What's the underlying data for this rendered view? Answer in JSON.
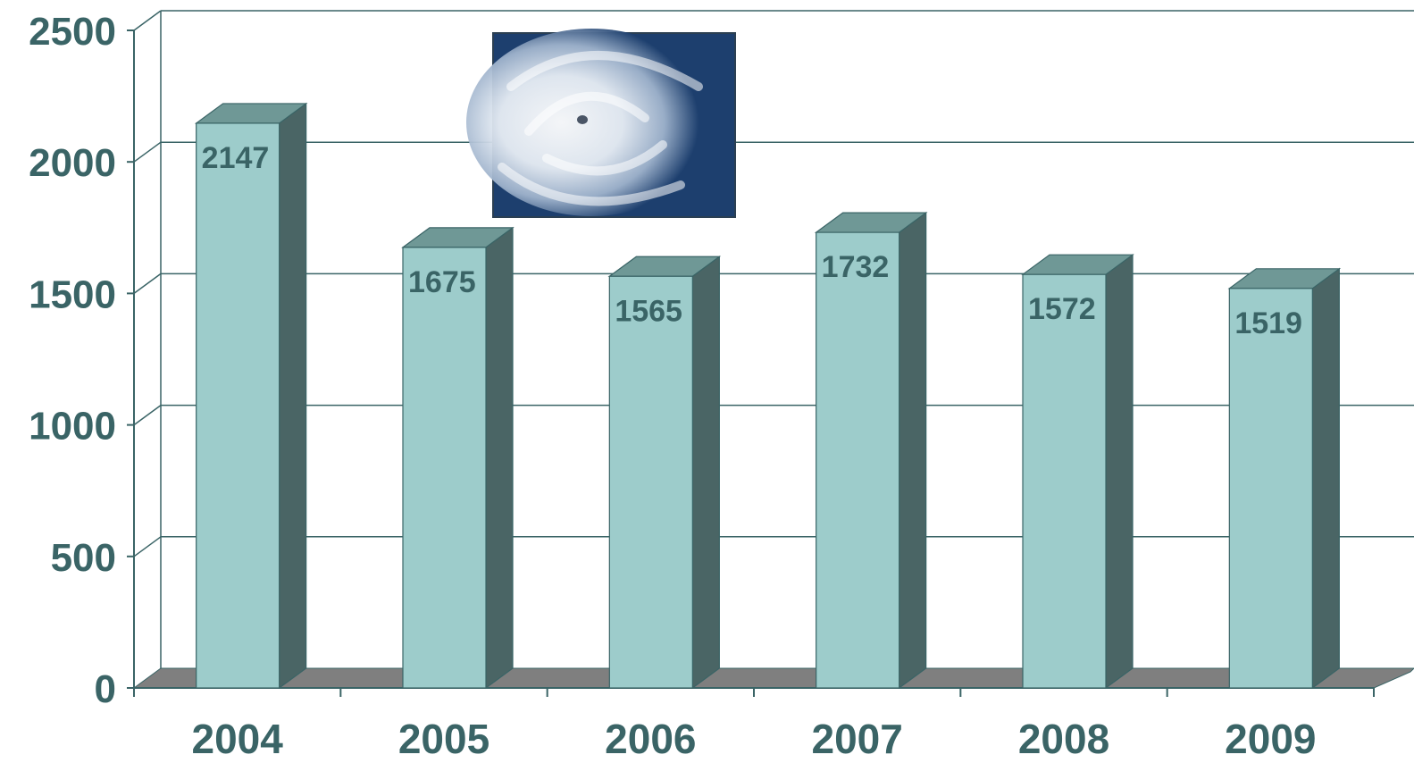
{
  "colors": {
    "bar_front": "#9dcccb",
    "bar_top": "#6f9896",
    "bar_side": "#4a6565",
    "text": "#3a6466",
    "grid": "#3a6466",
    "floor": "#7f7f7f",
    "photo_sea": "#1d3f6e",
    "photo_cloud": "#eef2f6"
  },
  "decorations": {
    "photo": "hurricane-satellite-photo"
  },
  "chart_data": {
    "type": "bar",
    "style": "3d-columns",
    "categories": [
      "2004",
      "2005",
      "2006",
      "2007",
      "2008",
      "2009"
    ],
    "values": [
      2147,
      1675,
      1565,
      1732,
      1572,
      1519
    ],
    "data_labels": [
      "2147",
      "1675",
      "1565",
      "1732",
      "1572",
      "1519"
    ],
    "yticks": [
      0,
      500,
      1000,
      1500,
      2000,
      2500
    ],
    "ytick_labels": [
      "0",
      "500",
      "1000",
      "1500",
      "2000",
      "2500"
    ],
    "ylim": [
      0,
      2500
    ],
    "grid": true,
    "legend": "none"
  }
}
